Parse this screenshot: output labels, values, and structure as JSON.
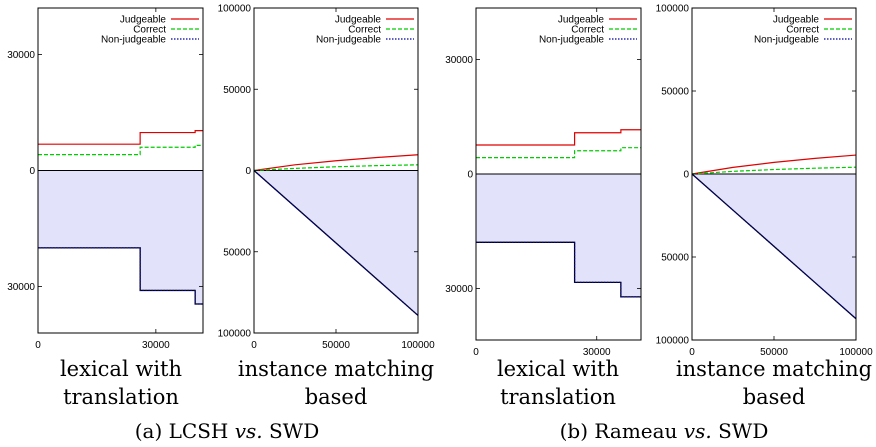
{
  "colors": {
    "judgeable": "#e00000",
    "correct": "#00cc00",
    "non_judgeable": "#0000a0",
    "fill": "#e2e2fb",
    "axis": "#000000"
  },
  "captions": [
    {
      "label": "(a) LCSH",
      "vs": "vs.",
      "rest": "SWD"
    },
    {
      "label": "(b) Rameau",
      "vs": "vs.",
      "rest": "SWD"
    }
  ],
  "chart_data": [
    {
      "type": "line",
      "panel": "a-left",
      "xlabel": "lexical with translation",
      "xlabel_lines": [
        "lexical with",
        "translation"
      ],
      "xlim": [
        0,
        42000
      ],
      "ylim": [
        -42000,
        42000
      ],
      "ylim_signed_note": "negative values plotted below zero axis",
      "xticks": [
        0,
        30000
      ],
      "yticks": [
        {
          "value": 30000,
          "label": "30000"
        },
        {
          "value": 0,
          "label": "0"
        },
        {
          "value": -30000,
          "label": "30000"
        }
      ],
      "legend": [
        "Judgeable",
        "Correct",
        "Non-judgeable"
      ],
      "legend_position": "top-right",
      "series": [
        {
          "name": "Judgeable",
          "style": "solid",
          "x": [
            0,
            26000,
            26000,
            40000,
            40000,
            42000
          ],
          "y": [
            6800,
            6800,
            9800,
            9800,
            10300,
            10300
          ]
        },
        {
          "name": "Correct",
          "style": "dashed",
          "x": [
            0,
            26000,
            26000,
            40000,
            40000,
            42000
          ],
          "y": [
            4100,
            4100,
            6000,
            6000,
            6500,
            6500
          ]
        },
        {
          "name": "Non-judgeable",
          "style": "dotted",
          "fill": true,
          "x": [
            0,
            26000,
            26000,
            40000,
            40000,
            42000
          ],
          "y": [
            -20000,
            -20000,
            -31000,
            -31000,
            -34500,
            -34500
          ]
        }
      ]
    },
    {
      "type": "line",
      "panel": "a-right",
      "xlabel": "instance matching based",
      "xlabel_lines": [
        "instance matching",
        "based"
      ],
      "xlim": [
        0,
        100000
      ],
      "ylim": [
        -100000,
        100000
      ],
      "xticks": [
        0,
        50000,
        100000
      ],
      "yticks": [
        {
          "value": 100000,
          "label": "100000"
        },
        {
          "value": 50000,
          "label": "50000"
        },
        {
          "value": 0,
          "label": "0"
        },
        {
          "value": -50000,
          "label": "50000"
        },
        {
          "value": -100000,
          "label": "100000"
        }
      ],
      "legend": [
        "Judgeable",
        "Correct",
        "Non-judgeable"
      ],
      "legend_position": "top-right",
      "series": [
        {
          "name": "Judgeable",
          "style": "solid",
          "x": [
            0,
            25000,
            50000,
            75000,
            100000
          ],
          "y": [
            0,
            3500,
            6000,
            8000,
            9700
          ]
        },
        {
          "name": "Correct",
          "style": "dashed",
          "x": [
            0,
            25000,
            50000,
            75000,
            100000
          ],
          "y": [
            0,
            1300,
            2300,
            3000,
            3500
          ]
        },
        {
          "name": "Non-judgeable",
          "style": "dotted",
          "fill": true,
          "x": [
            0,
            25000,
            50000,
            75000,
            100000
          ],
          "y": [
            0,
            -22300,
            -44600,
            -66900,
            -89200
          ]
        }
      ]
    },
    {
      "type": "line",
      "panel": "b-left",
      "xlabel": "lexical with translation",
      "xlabel_lines": [
        "lexical with",
        "translation"
      ],
      "xlim": [
        0,
        41000
      ],
      "ylim": [
        -43500,
        43500
      ],
      "xticks": [
        0,
        30000
      ],
      "yticks": [
        {
          "value": 30000,
          "label": "30000"
        },
        {
          "value": 0,
          "label": "0"
        },
        {
          "value": -30000,
          "label": "30000"
        }
      ],
      "legend": [
        "Judgeable",
        "Correct",
        "Non-judgeable"
      ],
      "legend_position": "top-right",
      "series": [
        {
          "name": "Judgeable",
          "style": "solid",
          "x": [
            0,
            24500,
            24500,
            36000,
            36000,
            41000
          ],
          "y": [
            7600,
            7600,
            10800,
            10800,
            11600,
            11600
          ]
        },
        {
          "name": "Correct",
          "style": "dashed",
          "x": [
            0,
            24500,
            24500,
            36000,
            36000,
            41000
          ],
          "y": [
            4300,
            4300,
            6100,
            6100,
            6900,
            6900
          ]
        },
        {
          "name": "Non-judgeable",
          "style": "dotted",
          "fill": true,
          "x": [
            0,
            24500,
            24500,
            36000,
            36000,
            41000
          ],
          "y": [
            -17900,
            -17900,
            -28400,
            -28400,
            -32200,
            -32200
          ]
        }
      ]
    },
    {
      "type": "line",
      "panel": "b-right",
      "xlabel": "instance matching based",
      "xlabel_lines": [
        "instance matching",
        "based"
      ],
      "xlim": [
        0,
        100000
      ],
      "ylim": [
        -100000,
        100000
      ],
      "xticks": [
        0,
        50000,
        100000
      ],
      "yticks": [
        {
          "value": 100000,
          "label": "100000"
        },
        {
          "value": 50000,
          "label": "50000"
        },
        {
          "value": 0,
          "label": "0"
        },
        {
          "value": -50000,
          "label": "50000"
        },
        {
          "value": -100000,
          "label": "100000"
        }
      ],
      "legend": [
        "Judgeable",
        "Correct",
        "Non-judgeable"
      ],
      "legend_position": "top-right",
      "series": [
        {
          "name": "Judgeable",
          "style": "solid",
          "x": [
            0,
            25000,
            50000,
            75000,
            100000
          ],
          "y": [
            0,
            4000,
            7000,
            9400,
            11400
          ]
        },
        {
          "name": "Correct",
          "style": "dashed",
          "x": [
            0,
            25000,
            50000,
            75000,
            100000
          ],
          "y": [
            0,
            1600,
            2700,
            3500,
            4100
          ]
        },
        {
          "name": "Non-judgeable",
          "style": "dotted",
          "fill": true,
          "x": [
            0,
            25000,
            50000,
            75000,
            100000
          ],
          "y": [
            0,
            -21800,
            -43600,
            -65400,
            -87200
          ]
        }
      ]
    }
  ]
}
